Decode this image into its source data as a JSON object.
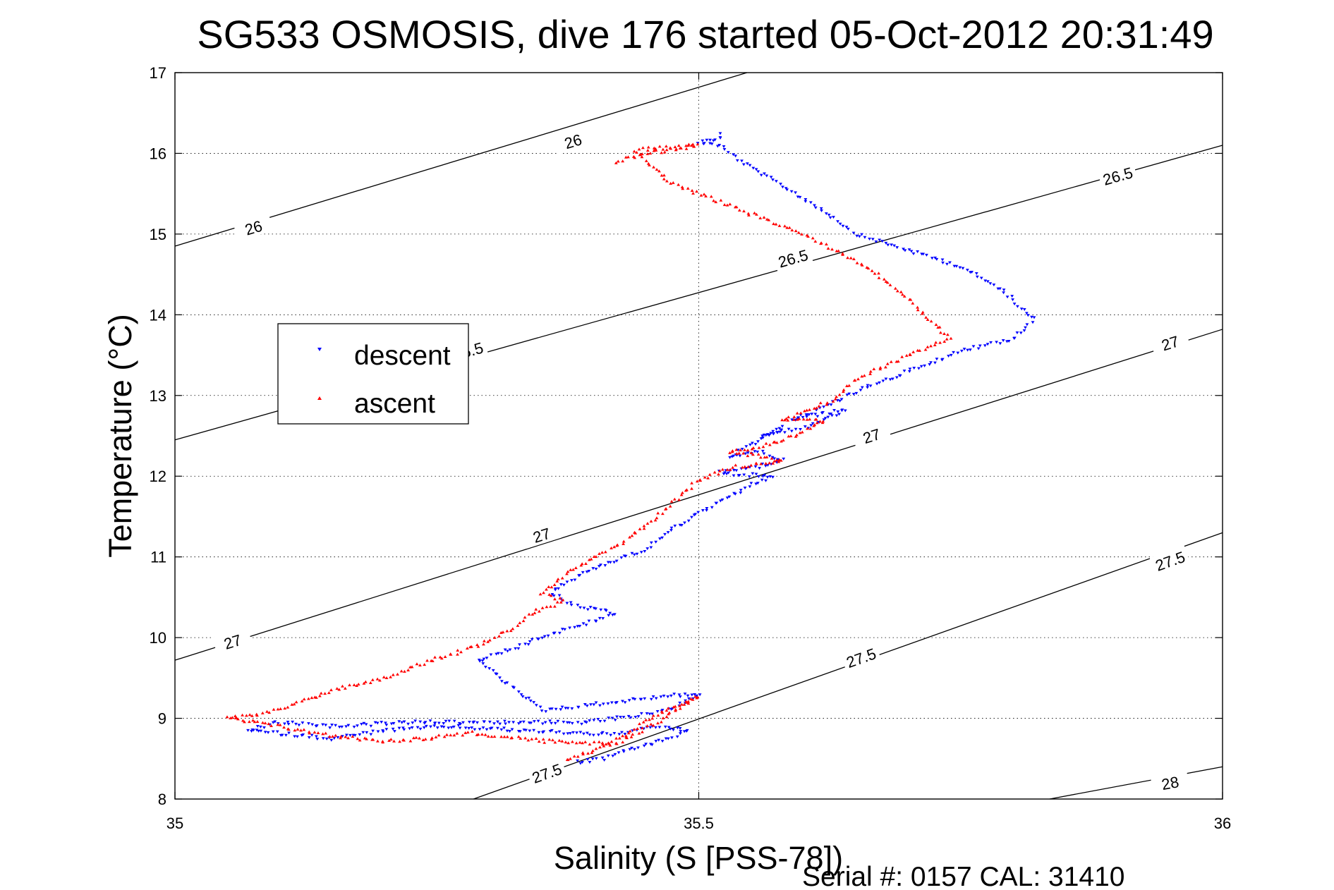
{
  "chart_data": {
    "type": "scatter",
    "title": "SG533 OSMOSIS, dive 176 started 05-Oct-2012 20:31:49",
    "xlabel": "Salinity (S [PSS-78])",
    "ylabel": "Temperature (°C)",
    "xlim": [
      35,
      36
    ],
    "ylim": [
      8,
      17
    ],
    "x_ticks": [
      "35",
      "35.5",
      "36"
    ],
    "y_ticks": [
      "8",
      "9",
      "10",
      "11",
      "12",
      "13",
      "14",
      "15",
      "16",
      "17"
    ],
    "grid": true,
    "legend_placement": "left",
    "footer": "Serial #: 0157  CAL: 31410",
    "colors": {
      "descent": "#0000ff",
      "ascent": "#ff0000",
      "contour": "#000000"
    },
    "density_contours": [
      {
        "level": "26",
        "labels": [
          {
            "x": 35.075,
            "y": 15.08
          },
          {
            "x": 35.38,
            "y": 16.15
          }
        ]
      },
      {
        "level": "26.5",
        "labels": [
          {
            "x": 35.28,
            "y": 13.55
          },
          {
            "x": 35.59,
            "y": 14.7
          },
          {
            "x": 35.9,
            "y": 15.72
          }
        ]
      },
      {
        "level": "27",
        "labels": [
          {
            "x": 35.055,
            "y": 9.95
          },
          {
            "x": 35.35,
            "y": 11.27
          },
          {
            "x": 35.665,
            "y": 12.5
          },
          {
            "x": 35.95,
            "y": 13.65
          }
        ]
      },
      {
        "level": "27.5",
        "labels": [
          {
            "x": 35.355,
            "y": 8.32
          },
          {
            "x": 35.655,
            "y": 9.75
          },
          {
            "x": 35.95,
            "y": 10.95
          }
        ]
      },
      {
        "level": "28",
        "labels": [
          {
            "x": 35.95,
            "y": 8.2
          }
        ]
      }
    ],
    "contour_lines": [
      {
        "level": "26",
        "points": [
          [
            35.0,
            14.85
          ],
          [
            35.546,
            17.0
          ]
        ]
      },
      {
        "level": "26.5",
        "points": [
          [
            35.0,
            12.45
          ],
          [
            36.0,
            16.1
          ]
        ]
      },
      {
        "level": "27",
        "points": [
          [
            35.0,
            9.72
          ],
          [
            36.0,
            13.82
          ]
        ]
      },
      {
        "level": "27.5",
        "points": [
          [
            35.285,
            8.0
          ],
          [
            36.0,
            11.3
          ]
        ]
      },
      {
        "level": "28",
        "points": [
          [
            35.835,
            8.0
          ],
          [
            36.0,
            8.4
          ]
        ]
      }
    ],
    "series": [
      {
        "name": "descent",
        "marker": "triangle-down",
        "path": [
          [
            35.52,
            16.24
          ],
          [
            35.52,
            16.2
          ],
          [
            35.51,
            16.16
          ],
          [
            35.5,
            16.14
          ],
          [
            35.52,
            16.1
          ],
          [
            35.54,
            15.9
          ],
          [
            35.58,
            15.6
          ],
          [
            35.63,
            15.2
          ],
          [
            35.65,
            15.0
          ],
          [
            35.7,
            14.8
          ],
          [
            35.75,
            14.6
          ],
          [
            35.79,
            14.3
          ],
          [
            35.82,
            13.95
          ],
          [
            35.8,
            13.7
          ],
          [
            35.75,
            13.55
          ],
          [
            35.7,
            13.3
          ],
          [
            35.65,
            13.05
          ],
          [
            35.62,
            12.85
          ],
          [
            35.59,
            12.7
          ],
          [
            35.62,
            12.78
          ],
          [
            35.64,
            12.82
          ],
          [
            35.6,
            12.6
          ],
          [
            35.56,
            12.5
          ],
          [
            35.58,
            12.6
          ],
          [
            35.56,
            12.45
          ],
          [
            35.53,
            12.25
          ],
          [
            35.56,
            12.3
          ],
          [
            35.58,
            12.2
          ],
          [
            35.55,
            12.1
          ],
          [
            35.52,
            12.05
          ],
          [
            35.54,
            12.02
          ],
          [
            35.57,
            12.0
          ],
          [
            35.55,
            11.9
          ],
          [
            35.53,
            11.75
          ],
          [
            35.5,
            11.55
          ],
          [
            35.47,
            11.3
          ],
          [
            35.45,
            11.1
          ],
          [
            35.42,
            10.95
          ],
          [
            35.39,
            10.8
          ],
          [
            35.37,
            10.65
          ],
          [
            35.36,
            10.55
          ],
          [
            35.38,
            10.4
          ],
          [
            35.42,
            10.3
          ],
          [
            35.4,
            10.2
          ],
          [
            35.36,
            10.05
          ],
          [
            35.33,
            9.9
          ],
          [
            35.29,
            9.72
          ],
          [
            35.35,
            9.1
          ],
          [
            35.42,
            9.2
          ],
          [
            35.47,
            9.28
          ],
          [
            35.5,
            9.3
          ],
          [
            35.48,
            9.15
          ],
          [
            35.45,
            9.05
          ],
          [
            35.39,
            8.95
          ],
          [
            35.32,
            8.95
          ],
          [
            35.26,
            8.95
          ],
          [
            35.22,
            8.95
          ],
          [
            35.15,
            8.9
          ],
          [
            35.1,
            8.95
          ],
          [
            35.07,
            8.85
          ],
          [
            35.15,
            8.75
          ],
          [
            35.2,
            8.85
          ],
          [
            35.26,
            8.9
          ],
          [
            35.33,
            8.85
          ],
          [
            35.42,
            8.8
          ],
          [
            35.46,
            8.9
          ],
          [
            35.49,
            8.85
          ],
          [
            35.46,
            8.7
          ],
          [
            35.43,
            8.6
          ],
          [
            35.41,
            8.5
          ],
          [
            35.38,
            8.45
          ]
        ]
      },
      {
        "name": "ascent",
        "marker": "triangle-up",
        "path": [
          [
            35.42,
            15.9
          ],
          [
            35.45,
            16.0
          ],
          [
            35.49,
            16.08
          ],
          [
            35.5,
            16.1
          ],
          [
            35.44,
            16.04
          ],
          [
            35.47,
            15.65
          ],
          [
            35.6,
            15.0
          ],
          [
            35.66,
            14.6
          ],
          [
            35.7,
            14.2
          ],
          [
            35.72,
            13.95
          ],
          [
            35.74,
            13.7
          ],
          [
            35.7,
            13.5
          ],
          [
            35.65,
            13.2
          ],
          [
            35.63,
            12.95
          ],
          [
            35.6,
            12.8
          ],
          [
            35.58,
            12.7
          ],
          [
            35.62,
            12.68
          ],
          [
            35.6,
            12.55
          ],
          [
            35.57,
            12.4
          ],
          [
            35.53,
            12.3
          ],
          [
            35.56,
            12.25
          ],
          [
            35.58,
            12.2
          ],
          [
            35.53,
            12.1
          ],
          [
            35.5,
            11.95
          ],
          [
            35.46,
            11.5
          ],
          [
            35.43,
            11.2
          ],
          [
            35.4,
            11.0
          ],
          [
            35.37,
            10.75
          ],
          [
            35.35,
            10.55
          ],
          [
            35.37,
            10.45
          ],
          [
            35.34,
            10.3
          ],
          [
            35.32,
            10.1
          ],
          [
            35.29,
            9.9
          ],
          [
            35.24,
            9.7
          ],
          [
            35.2,
            9.5
          ],
          [
            35.15,
            9.35
          ],
          [
            35.12,
            9.2
          ],
          [
            35.08,
            9.05
          ],
          [
            35.05,
            9.0
          ],
          [
            35.1,
            8.9
          ],
          [
            35.15,
            8.78
          ],
          [
            35.2,
            8.72
          ],
          [
            35.24,
            8.75
          ],
          [
            35.28,
            8.82
          ],
          [
            35.35,
            8.72
          ],
          [
            35.42,
            8.68
          ],
          [
            35.46,
            8.95
          ],
          [
            35.49,
            9.2
          ],
          [
            35.5,
            9.28
          ],
          [
            35.46,
            9.05
          ],
          [
            35.43,
            8.8
          ],
          [
            35.4,
            8.6
          ],
          [
            35.37,
            8.45
          ]
        ]
      }
    ]
  }
}
